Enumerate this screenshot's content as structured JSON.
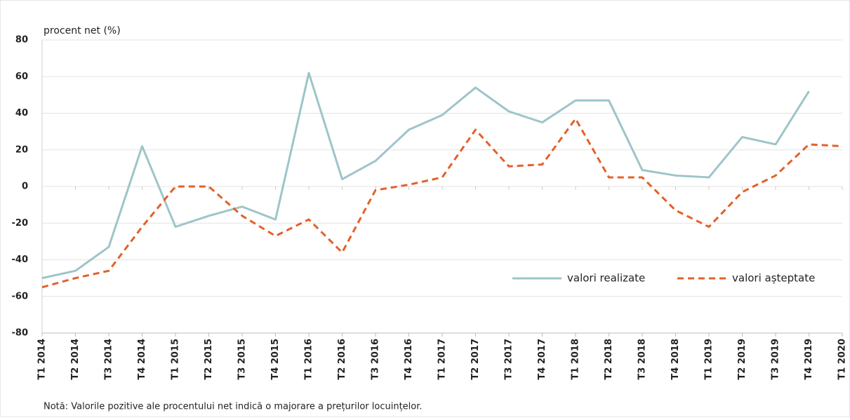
{
  "chart_data": {
    "type": "line",
    "y_label": "procent net (%)",
    "note": "Notă: Valorile pozitive ale procentului net indică o majorare a prețurilor locuințelor.",
    "categories": [
      "T1 2014",
      "T2 2014",
      "T3 2014",
      "T4 2014",
      "T1 2015",
      "T2 2015",
      "T3 2015",
      "T4 2015",
      "T1 2016",
      "T2 2016",
      "T3 2016",
      "T4 2016",
      "T1 2017",
      "T2 2017",
      "T3 2017",
      "T4 2017",
      "T1 2018",
      "T2 2018",
      "T3 2018",
      "T4 2018",
      "T1 2019",
      "T2 2019",
      "T3 2019",
      "T4 2019",
      "T1 2020"
    ],
    "series": [
      {
        "name": "valori realizate",
        "color": "#9dc5c9",
        "dash": false,
        "values": [
          -50,
          -46,
          -33,
          22,
          -22,
          -16,
          -11,
          -18,
          62,
          4,
          14,
          31,
          39,
          54,
          41,
          35,
          47,
          47,
          9,
          6,
          5,
          27,
          23,
          52,
          null
        ]
      },
      {
        "name": "valori așteptate",
        "color": "#e4602a",
        "dash": true,
        "values": [
          -55,
          -50,
          -46,
          -22,
          0,
          0,
          -16,
          -27,
          -18,
          -36,
          -2,
          1,
          5,
          31,
          11,
          12,
          37,
          5,
          5,
          -13,
          -22,
          -3,
          6,
          23,
          22
        ]
      }
    ],
    "ylim": [
      -80,
      80
    ],
    "yticks": [
      -80,
      -60,
      -40,
      -20,
      0,
      20,
      40,
      60,
      80
    ],
    "grid": true
  }
}
